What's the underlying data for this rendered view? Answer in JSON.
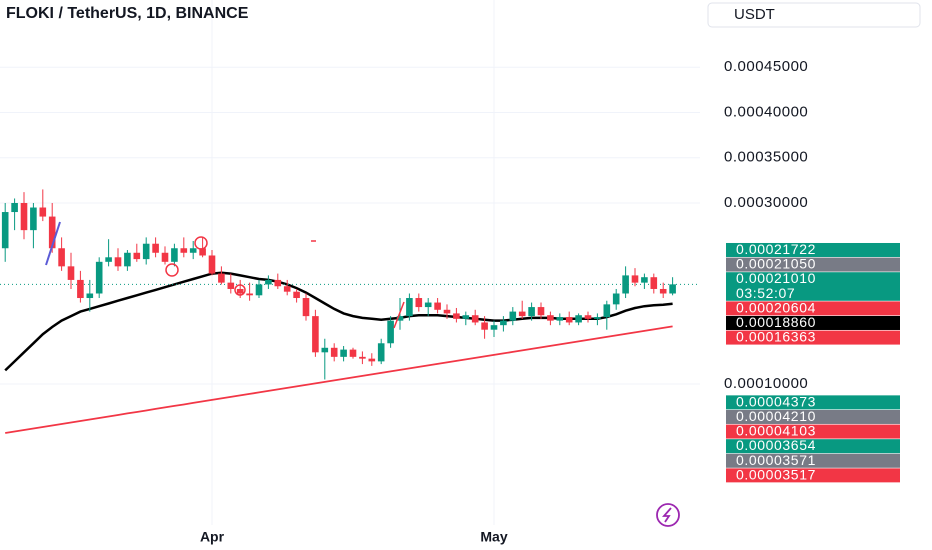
{
  "chart_data": {
    "type": "candlestick",
    "title": "FLOKI / TetherUS, 1D, BINANCE",
    "currency": "USDT",
    "categories": [
      null,
      null,
      null,
      null,
      null,
      null,
      null,
      null,
      null,
      null,
      null,
      null,
      null,
      null,
      null,
      null,
      null,
      null,
      null,
      null,
      null,
      null,
      "Apr",
      null,
      null,
      null,
      null,
      null,
      null,
      null,
      null,
      null,
      null,
      null,
      null,
      null,
      null,
      null,
      null,
      null,
      null,
      null,
      null,
      null,
      null,
      null,
      null,
      null,
      null,
      null,
      null,
      null,
      "May",
      null,
      null,
      null,
      null,
      null,
      null,
      null,
      null,
      null,
      null,
      null,
      null,
      null,
      null,
      null,
      null,
      null,
      null,
      null
    ],
    "open": [
      0.00025,
      0.00029,
      0.0003,
      0.00027,
      0.000295,
      0.000285,
      0.00025,
      0.00023,
      0.000215,
      0.000195,
      0.0002,
      0.000235,
      0.00024,
      0.00023,
      0.000245,
      0.000238,
      0.000255,
      0.000245,
      0.000235,
      0.00025,
      0.000245,
      0.00025,
      0.000242,
      0.000222,
      0.000212,
      0.000205,
      0.0002,
      0.000198,
      0.00021,
      0.000215,
      0.000208,
      0.000202,
      0.000195,
      0.000175,
      0.000135,
      0.00014,
      0.00013,
      0.000138,
      0.00013,
      0.000128,
      0.000125,
      0.000145,
      0.00017,
      0.000175,
      0.000195,
      0.000185,
      0.00019,
      0.000182,
      0.000178,
      0.000172,
      0.000176,
      0.000168,
      0.00016,
      0.000165,
      0.00017,
      0.00018,
      0.000175,
      0.000185,
      0.000176,
      0.00017,
      0.000174,
      0.000168,
      0.000176,
      0.000172,
      0.000174,
      0.000188,
      0.0002,
      0.00022,
      0.000212,
      0.000218,
      0.000205,
      0.0002
    ],
    "high": [
      0.0003,
      0.000305,
      0.000312,
      0.0003,
      0.000315,
      0.0003,
      0.000262,
      0.000245,
      0.000225,
      0.000215,
      0.00024,
      0.00026,
      0.00025,
      0.000248,
      0.000255,
      0.000262,
      0.000262,
      0.000252,
      0.000255,
      0.000262,
      0.000258,
      0.000262,
      0.000248,
      0.00023,
      0.000222,
      0.000215,
      0.000212,
      0.000215,
      0.00022,
      0.000222,
      0.000215,
      0.000205,
      0.0002,
      0.000182,
      0.00015,
      0.000145,
      0.000142,
      0.00014,
      0.000136,
      0.000134,
      0.00015,
      0.000175,
      0.000195,
      0.0002,
      0.0002,
      0.000195,
      0.000195,
      0.000188,
      0.000184,
      0.00018,
      0.000182,
      0.000175,
      0.00017,
      0.000175,
      0.000185,
      0.000192,
      0.00019,
      0.00019,
      0.00018,
      0.000178,
      0.00018,
      0.000178,
      0.00018,
      0.000178,
      0.000192,
      0.000205,
      0.00023,
      0.000228,
      0.000222,
      0.000222,
      0.000212,
      0.000218
    ],
    "low": [
      0.000235,
      0.00027,
      0.00026,
      0.00025,
      0.00028,
      0.000245,
      0.000225,
      0.000205,
      0.00019,
      0.00018,
      0.000195,
      0.00023,
      0.000225,
      0.000225,
      0.000235,
      0.000232,
      0.00024,
      0.000232,
      0.00023,
      0.00024,
      0.000238,
      0.00024,
      0.00022,
      0.00021,
      0.0002,
      0.000195,
      0.000192,
      0.000195,
      0.000205,
      0.000205,
      0.000198,
      0.00019,
      0.00017,
      0.00013,
      0.000105,
      0.000125,
      0.000125,
      0.000128,
      0.000122,
      0.00012,
      0.000122,
      0.00014,
      0.00016,
      0.00017,
      0.00018,
      0.000175,
      0.000178,
      0.000172,
      0.000168,
      0.000165,
      0.000165,
      0.00015,
      0.000152,
      0.000158,
      0.000165,
      0.000172,
      0.00017,
      0.000172,
      0.000165,
      0.000165,
      0.000165,
      0.000165,
      0.000168,
      0.000165,
      0.00016,
      0.000182,
      0.000195,
      0.000208,
      0.000205,
      0.0002,
      0.000195,
      0.000198
    ],
    "close": [
      0.00029,
      0.0003,
      0.00027,
      0.000295,
      0.000285,
      0.00025,
      0.00023,
      0.000215,
      0.000195,
      0.0002,
      0.000235,
      0.00024,
      0.00023,
      0.000245,
      0.000238,
      0.000255,
      0.000245,
      0.000235,
      0.00025,
      0.000245,
      0.00025,
      0.000242,
      0.000222,
      0.000212,
      0.000205,
      0.0002,
      0.000198,
      0.00021,
      0.000215,
      0.000208,
      0.000202,
      0.000195,
      0.000175,
      0.000135,
      0.00014,
      0.00013,
      0.000138,
      0.00013,
      0.000128,
      0.000125,
      0.000145,
      0.00017,
      0.000175,
      0.000195,
      0.000185,
      0.00019,
      0.000182,
      0.000178,
      0.000172,
      0.000176,
      0.000168,
      0.00016,
      0.000165,
      0.00017,
      0.00018,
      0.000175,
      0.000185,
      0.000176,
      0.00017,
      0.000174,
      0.000168,
      0.000176,
      0.000172,
      0.000174,
      0.000188,
      0.0002,
      0.00022,
      0.000212,
      0.000218,
      0.000205,
      0.0002,
      0.0002101
    ],
    "up_color": "#089981",
    "down_color": "#f23645",
    "lines": [
      {
        "color": "#000000",
        "values": [
          0.000115,
          0.000125,
          0.000135,
          0.000145,
          0.000155,
          0.000163,
          0.00017,
          0.000175,
          0.00018,
          0.000183,
          0.000186,
          0.000189,
          0.000192,
          0.000195,
          0.000198,
          0.000201,
          0.000204,
          0.000207,
          0.00021,
          0.000213,
          0.000216,
          0.000219,
          0.000222,
          0.000223,
          0.000222,
          0.00022,
          0.000218,
          0.000216,
          0.000215,
          0.000213,
          0.00021,
          0.000206,
          0.000201,
          0.000195,
          0.000189,
          0.000183,
          0.000178,
          0.000175,
          0.000173,
          0.000172,
          0.000171,
          0.000172,
          0.000173,
          0.000175,
          0.000176,
          0.000176,
          0.000176,
          0.000175,
          0.000174,
          0.000173,
          0.000172,
          0.000171,
          0.00017,
          0.00017,
          0.000171,
          0.000172,
          0.000173,
          0.000173,
          0.000173,
          0.000172,
          0.000172,
          0.000172,
          0.000172,
          0.000172,
          0.000174,
          0.000177,
          0.000181,
          0.000184,
          0.000186,
          0.000187,
          0.0001875,
          0.0001886
        ]
      },
      {
        "color": "#f23645",
        "values": [
          4.59e-05,
          4.756e-05,
          4.922e-05,
          5.087e-05,
          5.253e-05,
          5.419e-05,
          5.585e-05,
          5.751e-05,
          5.916e-05,
          6.082e-05,
          6.248e-05,
          6.414e-05,
          6.58e-05,
          6.746e-05,
          6.911e-05,
          7.077e-05,
          7.243e-05,
          7.409e-05,
          7.575e-05,
          7.74e-05,
          7.906e-05,
          8.072e-05,
          8.238e-05,
          8.404e-05,
          8.569e-05,
          8.735e-05,
          8.901e-05,
          9.067e-05,
          9.233e-05,
          9.399e-05,
          9.564e-05,
          9.73e-05,
          9.896e-05,
          0.00010062,
          0.00010228,
          0.00010393,
          0.00010559,
          0.00010725,
          0.00010891,
          0.00011057,
          0.00011222,
          0.00011388,
          0.00011554,
          0.0001172,
          0.00011886,
          0.00012052,
          0.00012217,
          0.00012383,
          0.00012549,
          0.00012715,
          0.00012881,
          0.00013046,
          0.00013212,
          0.00013378,
          0.00013544,
          0.0001371,
          0.00013875,
          0.00014041,
          0.00014207,
          0.00014373,
          0.00014539,
          0.00014705,
          0.0001487,
          0.00015036,
          0.00015202,
          0.00015368,
          0.00015534,
          0.00015699,
          0.00015865,
          0.00016031,
          0.00016197,
          0.00016363
        ]
      }
    ],
    "ylim": [
      -5.58e-05,
      0.0005243
    ],
    "yticks": [
      {
        "value": 0.00045,
        "label": "0.00045000"
      },
      {
        "value": 0.0004,
        "label": "0.00040000"
      },
      {
        "value": 0.00035,
        "label": "0.00035000"
      },
      {
        "value": 0.0003,
        "label": "0.00030000"
      },
      {
        "value": 0.0001,
        "label": "0.00010000"
      }
    ],
    "grid": true,
    "price_labels": [
      {
        "value": 0.00021722,
        "label": "0.00021722",
        "color": "#089981"
      },
      {
        "value": 0.0002105,
        "label": "0.00021050",
        "color": "#787b86"
      },
      {
        "value": 0.0002101,
        "label": "0.00021010",
        "color": "#089981",
        "countdown": "03:52:07"
      },
      {
        "value": 0.00020604,
        "label": "0.00020604",
        "color": "#f23645"
      },
      {
        "value": 0.0001886,
        "label": "0.00018860",
        "color": "#000000"
      },
      {
        "value": 0.00016363,
        "label": "0.00016363",
        "color": "#f23645"
      },
      {
        "value": 4.373e-05,
        "label": "0.00004373",
        "color": "#089981"
      },
      {
        "value": 4.21e-05,
        "label": "0.00004210",
        "color": "#787b86"
      },
      {
        "value": 4.103e-05,
        "label": "0.00004103",
        "color": "#f23645"
      },
      {
        "value": 3.654e-05,
        "label": "0.00003654",
        "color": "#089981"
      },
      {
        "value": 3.571e-05,
        "label": "0.00003571",
        "color": "#787b86"
      },
      {
        "value": 3.517e-05,
        "label": "0.00003517",
        "color": "#f23645"
      }
    ]
  }
}
